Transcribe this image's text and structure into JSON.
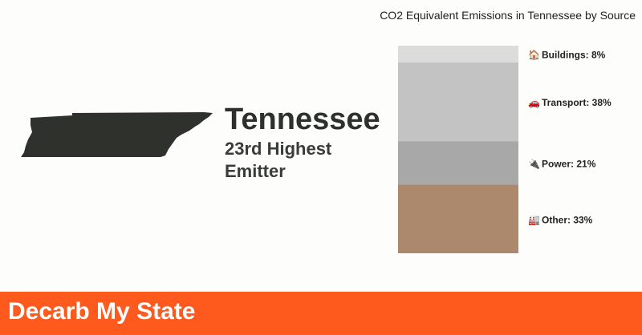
{
  "state": {
    "name": "Tennessee",
    "rank_line1": "23rd Highest",
    "rank_line2": "Emitter",
    "shape_color": "#2f312d"
  },
  "footer": {
    "brand": "Decarb My State",
    "color": "#fe5a1e"
  },
  "chart_data": {
    "type": "bar",
    "stacked": true,
    "title": "CO2 Equivalent Emissions in Tennessee by Source",
    "ylim": [
      0,
      100
    ],
    "unit": "%",
    "series": [
      {
        "name": "Other",
        "value": 33,
        "label": "Other: 33%",
        "icon": "factory-icon",
        "glyph": "🏭",
        "color": "#ac886c"
      },
      {
        "name": "Power",
        "value": 21,
        "label": "Power: 21%",
        "icon": "plug-icon",
        "glyph": "🔌",
        "color": "#a8a8a8"
      },
      {
        "name": "Transport",
        "value": 38,
        "label": "Transport: 38%",
        "icon": "car-icon",
        "glyph": "🚗",
        "color": "#c3c3c3"
      },
      {
        "name": "Buildings",
        "value": 8,
        "label": "Buildings: 8%",
        "icon": "house-icon",
        "glyph": "🏠",
        "color": "#dcdcdc"
      }
    ]
  }
}
